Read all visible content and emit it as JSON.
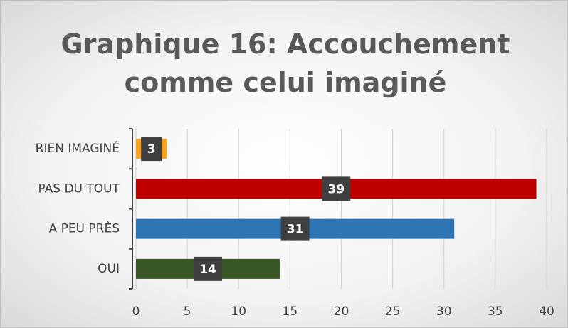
{
  "chart_data": {
    "type": "hbar",
    "title": "Graphique 16: Accouchement comme celui imaginé",
    "categories": [
      "RIEN IMAGINÉ",
      "PAS DU TOUT",
      "A PEU PRÈS",
      "OUI"
    ],
    "values": [
      3,
      39,
      31,
      14
    ],
    "colors": [
      "#ffa31a",
      "#c00000",
      "#2e75b6",
      "#375623"
    ],
    "xlim": [
      0,
      40
    ],
    "xticks": [
      0,
      5,
      10,
      15,
      20,
      25,
      30,
      35,
      40
    ],
    "grid": true
  }
}
